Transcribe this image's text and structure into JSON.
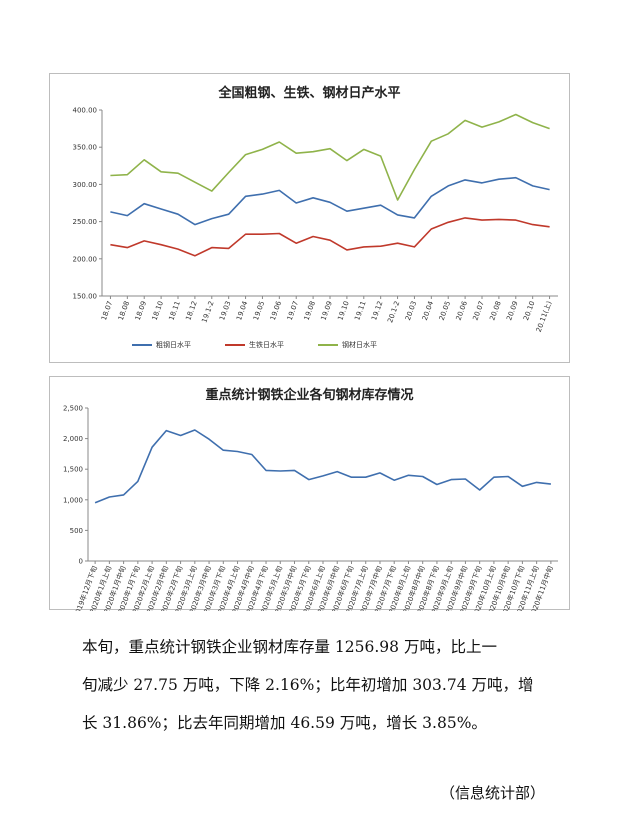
{
  "chart_data": [
    {
      "type": "line",
      "title": "全国粗钢、生铁、钢材日产水平",
      "categories": [
        "18.07",
        "18.08",
        "18.09",
        "18.10",
        "18.11",
        "18.12",
        "19.1-2",
        "19.03",
        "19.04",
        "19.05",
        "19.06",
        "19.07",
        "19.08",
        "19.09",
        "19.10",
        "19.11",
        "19.12",
        "20.1-2",
        "20.03",
        "20.04",
        "20.05",
        "20.06",
        "20.07",
        "20.08",
        "20.09",
        "20.10",
        "20.11(上)"
      ],
      "ylim": [
        150,
        400
      ],
      "yticks": [
        "150.00",
        "200.00",
        "250.00",
        "300.00",
        "350.00",
        "400.00"
      ],
      "yticks_values": [
        150,
        200,
        250,
        300,
        350,
        400
      ],
      "legend_position": "bottom-left",
      "series": [
        {
          "name": "粗钢日水平",
          "color": "#3f6fae",
          "values": [
            263,
            258,
            274,
            267,
            260,
            246,
            254,
            260,
            284,
            287,
            292,
            275,
            282,
            276,
            264,
            268,
            272,
            259,
            255,
            284,
            298,
            306,
            302,
            307,
            309,
            298,
            293
          ]
        },
        {
          "name": "生铁日水平",
          "color": "#c0392b",
          "values": [
            219,
            215,
            224,
            219,
            213,
            204,
            215,
            214,
            233,
            233,
            234,
            221,
            230,
            225,
            212,
            216,
            217,
            221,
            216,
            240,
            249,
            255,
            252,
            253,
            252,
            246,
            243
          ]
        },
        {
          "name": "钢材日水平",
          "color": "#8fb34a",
          "values": [
            312,
            313,
            333,
            317,
            315,
            303,
            291,
            316,
            340,
            347,
            357,
            342,
            344,
            348,
            332,
            347,
            338,
            279,
            320,
            358,
            368,
            386,
            377,
            384,
            394,
            383,
            375
          ]
        }
      ]
    },
    {
      "type": "line",
      "title": "重点统计钢铁企业各旬钢材库存情况",
      "categories": [
        "2019年12月下旬",
        "2020年1月上旬",
        "2020年1月中旬",
        "2020年1月下旬",
        "2020年2月上旬",
        "2020年2月中旬",
        "2020年2月下旬",
        "2020年3月上旬",
        "2020年3月中旬",
        "2020年3月下旬",
        "2020年4月上旬",
        "2020年4月中旬",
        "2020年4月下旬",
        "2020年5月上旬",
        "2020年5月中旬",
        "2020年5月下旬",
        "2020年6月上旬",
        "2020年6月中旬",
        "2020年6月下旬",
        "2020年7月上旬",
        "2020年7月中旬",
        "2020年7月下旬",
        "2020年8月上旬",
        "2020年8月中旬",
        "2020年8月下旬",
        "2020年9月上旬",
        "2020年9月中旬",
        "2020年9月下旬",
        "2020年10月上旬",
        "2020年10月中旬",
        "2020年10月下旬",
        "2020年11月上旬",
        "2020年11月中旬"
      ],
      "ylim": [
        0,
        2500
      ],
      "yticks": [
        "0",
        "500",
        "1,000",
        "1,500",
        "2,000",
        "2,500"
      ],
      "yticks_values": [
        0,
        500,
        1000,
        1500,
        2000,
        2500
      ],
      "series": [
        {
          "color": "#3f6fae",
          "values": [
            953,
            1045,
            1080,
            1300,
            1860,
            2130,
            2050,
            2140,
            1990,
            1810,
            1790,
            1740,
            1480,
            1470,
            1480,
            1330,
            1390,
            1460,
            1370,
            1370,
            1440,
            1320,
            1400,
            1380,
            1250,
            1330,
            1340,
            1160,
            1370,
            1380,
            1220,
            1284,
            1257
          ]
        }
      ]
    }
  ],
  "text": {
    "para_line1": "本旬，重点统计钢铁企业钢材库存量 1256.98 万吨，比上一",
    "para_line2": "旬减少 27.75 万吨，下降 2.16%；比年初增加 303.74 万吨，增",
    "para_line3": "长 31.86%；比去年同期增加 46.59 万吨，增长 3.85%。",
    "signature": "（信息统计部）"
  }
}
